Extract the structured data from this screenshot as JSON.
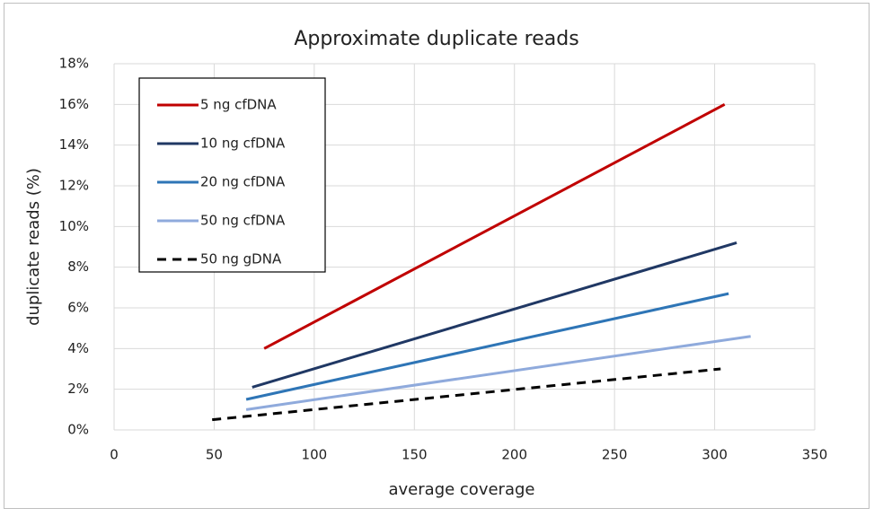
{
  "chart_data": {
    "type": "line",
    "title": "Approximate duplicate reads",
    "xlabel": "average coverage",
    "ylabel": "duplicate reads (%)",
    "xlim": [
      0,
      350
    ],
    "xticks": [
      0,
      50,
      100,
      150,
      200,
      250,
      300,
      350
    ],
    "ylim": [
      0,
      18
    ],
    "yticks": [
      {
        "value": 0,
        "label": "0%"
      },
      {
        "value": 2,
        "label": "2%"
      },
      {
        "value": 4,
        "label": "4%"
      },
      {
        "value": 6,
        "label": "6%"
      },
      {
        "value": 8,
        "label": "8%"
      },
      {
        "value": 10,
        "label": "10%"
      },
      {
        "value": 12,
        "label": "12%"
      },
      {
        "value": 14,
        "label": "14%"
      },
      {
        "value": 16,
        "label": "16%"
      },
      {
        "value": 18,
        "label": "18%"
      }
    ],
    "grid": true,
    "legend": "upper left",
    "series": [
      {
        "name": "5 ng cfDNA",
        "color": "#c00000",
        "x": [
          75,
          305
        ],
        "values": [
          4.0,
          16.0
        ]
      },
      {
        "name": "10 ng cfDNA",
        "color": "#203864",
        "x": [
          69,
          311
        ],
        "values": [
          2.1,
          9.2
        ]
      },
      {
        "name": "20 ng cfDNA",
        "color": "#2e75b6",
        "x": [
          66,
          307
        ],
        "values": [
          1.5,
          6.7
        ]
      },
      {
        "name": "50 ng cfDNA",
        "color": "#8faadc",
        "x": [
          66,
          318
        ],
        "values": [
          1.0,
          4.6
        ]
      },
      {
        "name": "50 ng gDNA",
        "color": "#000000",
        "x": [
          49,
          303
        ],
        "values": [
          0.5,
          3.0
        ],
        "dash": true
      }
    ]
  }
}
